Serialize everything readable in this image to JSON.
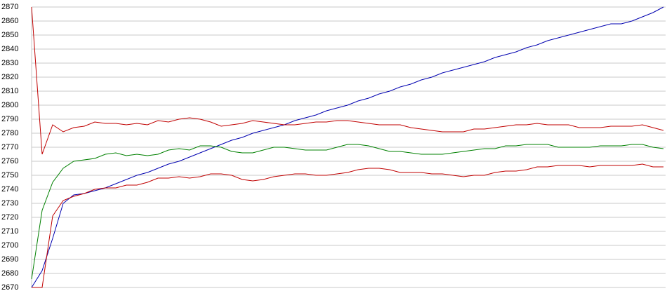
{
  "chart_data": {
    "type": "line",
    "ylim": [
      2670,
      2870
    ],
    "yticks": [
      2670,
      2680,
      2690,
      2700,
      2710,
      2720,
      2730,
      2740,
      2750,
      2760,
      2770,
      2780,
      2790,
      2800,
      2810,
      2820,
      2830,
      2840,
      2850,
      2860,
      2870
    ],
    "grid": true,
    "series": [
      {
        "color": "#0000b0",
        "values": [
          2670,
          2682,
          2705,
          2730,
          2736,
          2737,
          2739,
          2741,
          2744,
          2747,
          2750,
          2752,
          2755,
          2758,
          2760,
          2763,
          2766,
          2769,
          2772,
          2775,
          2777,
          2780,
          2782,
          2784,
          2786,
          2789,
          2791,
          2793,
          2796,
          2798,
          2800,
          2803,
          2805,
          2808,
          2810,
          2813,
          2815,
          2818,
          2820,
          2823,
          2825,
          2827,
          2829,
          2831,
          2834,
          2836,
          2838,
          2841,
          2843,
          2846,
          2848,
          2850,
          2852,
          2854,
          2856,
          2858,
          2858,
          2860,
          2863,
          2866,
          2870
        ]
      },
      {
        "color": "#c00000",
        "values": [
          2870,
          2765,
          2786,
          2781,
          2784,
          2785,
          2788,
          2787,
          2787,
          2786,
          2787,
          2786,
          2789,
          2788,
          2790,
          2791,
          2790,
          2788,
          2785,
          2786,
          2787,
          2789,
          2788,
          2787,
          2786,
          2786,
          2787,
          2788,
          2788,
          2789,
          2789,
          2788,
          2787,
          2786,
          2786,
          2786,
          2784,
          2783,
          2782,
          2781,
          2781,
          2781,
          2783,
          2783,
          2784,
          2785,
          2786,
          2786,
          2787,
          2786,
          2786,
          2786,
          2784,
          2784,
          2784,
          2785,
          2785,
          2785,
          2786,
          2784,
          2782
        ]
      },
      {
        "color": "#008000",
        "values": [
          2676,
          2725,
          2745,
          2755,
          2760,
          2761,
          2762,
          2765,
          2766,
          2764,
          2765,
          2764,
          2765,
          2768,
          2769,
          2768,
          2771,
          2771,
          2770,
          2767,
          2766,
          2766,
          2768,
          2770,
          2770,
          2769,
          2768,
          2768,
          2768,
          2770,
          2772,
          2772,
          2771,
          2769,
          2767,
          2767,
          2766,
          2765,
          2765,
          2765,
          2766,
          2767,
          2768,
          2769,
          2769,
          2771,
          2771,
          2772,
          2772,
          2772,
          2770,
          2770,
          2770,
          2770,
          2771,
          2771,
          2771,
          2772,
          2772,
          2770,
          2769
        ]
      },
      {
        "color": "#c00000",
        "values": [
          2670,
          2670,
          2721,
          2732,
          2735,
          2737,
          2740,
          2741,
          2741,
          2743,
          2743,
          2745,
          2748,
          2748,
          2749,
          2748,
          2749,
          2751,
          2751,
          2750,
          2747,
          2746,
          2747,
          2749,
          2750,
          2751,
          2751,
          2750,
          2750,
          2751,
          2752,
          2754,
          2755,
          2755,
          2754,
          2752,
          2752,
          2752,
          2751,
          2751,
          2750,
          2749,
          2750,
          2750,
          2752,
          2753,
          2753,
          2754,
          2756,
          2756,
          2757,
          2757,
          2757,
          2756,
          2757,
          2757,
          2757,
          2757,
          2758,
          2756,
          2756
        ]
      }
    ]
  }
}
